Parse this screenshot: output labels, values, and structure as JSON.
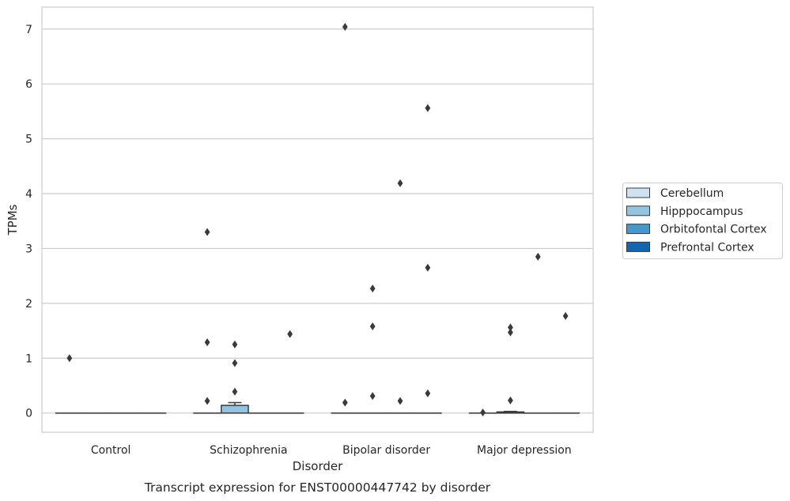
{
  "chart_data": {
    "type": "box",
    "title": "Transcript expression for ENST00000447742 by disorder",
    "xlabel": "Disorder",
    "ylabel": "TPMs",
    "ylim": [
      -0.35,
      7.4
    ],
    "yticks": [
      0,
      1,
      2,
      3,
      4,
      5,
      6,
      7
    ],
    "grid": true,
    "legend_position": "right",
    "categories": [
      "Control",
      "Schizophrenia",
      "Bipolar disorder",
      "Major depression"
    ],
    "series": [
      {
        "name": "Cerebellum",
        "color": "#d0e1f2",
        "boxes": [
          {
            "q1": 0,
            "median": 0,
            "q3": 0,
            "whislo": 0,
            "whishi": 0,
            "fliers": [
              1.0
            ]
          },
          {
            "q1": 0,
            "median": 0,
            "q3": 0,
            "whislo": 0,
            "whishi": 0,
            "fliers": [
              3.3,
              1.29,
              0.22
            ]
          },
          {
            "q1": 0,
            "median": 0,
            "q3": 0,
            "whislo": 0,
            "whishi": 0,
            "fliers": [
              7.04,
              0.19
            ]
          },
          {
            "q1": 0,
            "median": 0,
            "q3": 0,
            "whislo": 0,
            "whishi": 0,
            "fliers": [
              0.01
            ]
          }
        ]
      },
      {
        "name": "Hipppocampus",
        "color": "#94c4df",
        "boxes": [
          {
            "q1": 0,
            "median": 0,
            "q3": 0,
            "whislo": 0,
            "whishi": 0,
            "fliers": []
          },
          {
            "q1": 0,
            "median": 0,
            "q3": 0.14,
            "whislo": 0,
            "whishi": 0.19,
            "fliers": [
              1.25,
              0.91,
              0.39
            ]
          },
          {
            "q1": 0,
            "median": 0,
            "q3": 0,
            "whislo": 0,
            "whishi": 0,
            "fliers": [
              2.27,
              1.58,
              0.31
            ]
          },
          {
            "q1": 0,
            "median": 0,
            "q3": 0.02,
            "whislo": 0,
            "whishi": 0.03,
            "fliers": [
              1.56,
              1.47,
              0.23
            ]
          }
        ]
      },
      {
        "name": "Orbitofontal Cortex",
        "color": "#4a98c9",
        "boxes": [
          {
            "q1": 0,
            "median": 0,
            "q3": 0,
            "whislo": 0,
            "whishi": 0,
            "fliers": []
          },
          {
            "q1": 0,
            "median": 0,
            "q3": 0,
            "whislo": 0,
            "whishi": 0,
            "fliers": []
          },
          {
            "q1": 0,
            "median": 0,
            "q3": 0,
            "whislo": 0,
            "whishi": 0,
            "fliers": [
              4.19,
              0.22
            ]
          },
          {
            "q1": 0,
            "median": 0,
            "q3": 0,
            "whislo": 0,
            "whishi": 0,
            "fliers": [
              2.85
            ]
          }
        ]
      },
      {
        "name": "Prefrontal Cortex",
        "color": "#1764ab",
        "boxes": [
          {
            "q1": 0,
            "median": 0,
            "q3": 0,
            "whislo": 0,
            "whishi": 0,
            "fliers": []
          },
          {
            "q1": 0,
            "median": 0,
            "q3": 0,
            "whislo": 0,
            "whishi": 0,
            "fliers": [
              1.44
            ]
          },
          {
            "q1": 0,
            "median": 0,
            "q3": 0,
            "whislo": 0,
            "whishi": 0,
            "fliers": [
              5.56,
              2.65,
              0.36
            ]
          },
          {
            "q1": 0,
            "median": 0,
            "q3": 0,
            "whislo": 0,
            "whishi": 0,
            "fliers": [
              1.77
            ]
          }
        ]
      }
    ]
  }
}
